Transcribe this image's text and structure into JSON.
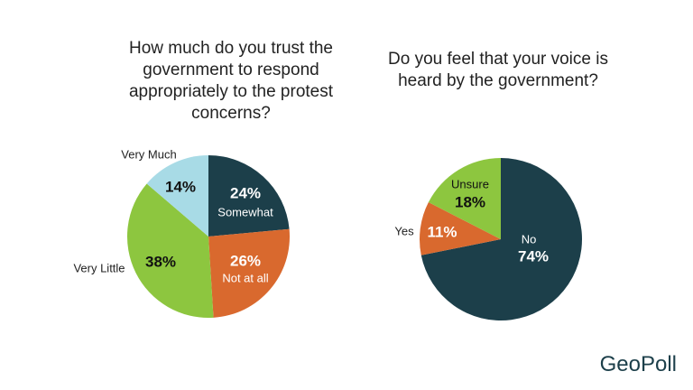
{
  "chart_data": [
    {
      "type": "pie",
      "title": "How much do you trust the government to respond appropriately to the protest concerns?",
      "categories": [
        "Somewhat",
        "Not at all",
        "Very Little",
        "Very Much"
      ],
      "values": [
        24,
        26,
        38,
        14
      ],
      "value_labels": [
        "24%",
        "26%",
        "38%",
        "14%"
      ],
      "colors": [
        "#1c3f4a",
        "#d9692e",
        "#8dc63f",
        "#a8dbe6"
      ]
    },
    {
      "type": "pie",
      "title": "Do you feel that your voice is heard by the government?",
      "categories": [
        "No",
        "Yes",
        "Unsure"
      ],
      "values": [
        74,
        11,
        18
      ],
      "value_labels": [
        "74%",
        "11%",
        "18%"
      ],
      "colors": [
        "#1c3f4a",
        "#d9692e",
        "#8dc63f"
      ]
    }
  ],
  "logo": "GeoPoll"
}
